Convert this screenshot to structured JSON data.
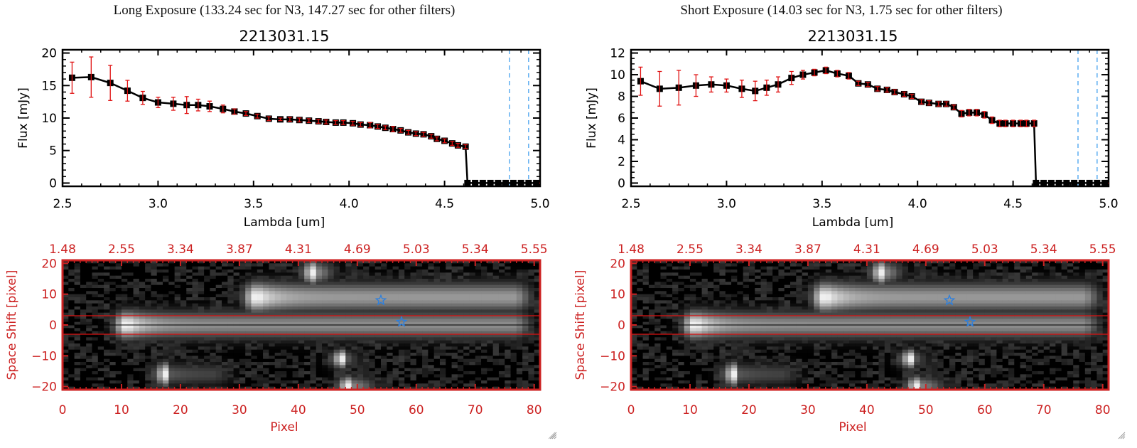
{
  "panels": [
    {
      "id": "long",
      "exposure_title": "Long Exposure (133.24 sec for N3, 147.27 sec for other filters)",
      "object_id": "2213031.15"
    },
    {
      "id": "short",
      "exposure_title": "Short Exposure (14.03 sec for N3, 1.75 sec for other filters)",
      "object_id": "2213031.15"
    }
  ],
  "colors": {
    "axes": "#000000",
    "errorbar": "#e01010",
    "marker": "#000000",
    "vline": "#3399ee",
    "image_frame": "#cc2222",
    "aperture_line": "#dd1111",
    "star": "#2a7fe0"
  },
  "chart_data": [
    {
      "type": "line",
      "panel": "long",
      "title": "2213031.15",
      "xlabel": "Lambda [um]",
      "ylabel": "Flux [mJy]",
      "xlim": [
        2.5,
        5.0
      ],
      "ylim": [
        -0.5,
        20.5
      ],
      "xticks": [
        2.5,
        3.0,
        3.5,
        4.0,
        4.5,
        5.0
      ],
      "xtick_labels": [
        "2.5",
        "3.0",
        "3.5",
        "4.0",
        "4.5",
        "5.0"
      ],
      "yticks": [
        0,
        5,
        10,
        15,
        20
      ],
      "ytick_labels": [
        "0",
        "5",
        "10",
        "15",
        "20"
      ],
      "vlines": [
        4.84,
        4.94
      ],
      "hline_dashed": 0,
      "series": [
        {
          "name": "flux",
          "x": [
            2.55,
            2.65,
            2.75,
            2.84,
            2.92,
            3.0,
            3.08,
            3.15,
            3.21,
            3.27,
            3.34,
            3.4,
            3.46,
            3.52,
            3.58,
            3.64,
            3.69,
            3.74,
            3.79,
            3.84,
            3.88,
            3.93,
            3.97,
            4.02,
            4.06,
            4.11,
            4.15,
            4.19,
            4.23,
            4.27,
            4.31,
            4.35,
            4.39,
            4.43,
            4.46,
            4.5,
            4.54,
            4.57,
            4.61,
            4.62,
            4.66,
            4.7,
            4.74,
            4.78,
            4.82,
            4.86,
            4.9,
            4.94,
            4.98
          ],
          "y": [
            16.2,
            16.3,
            15.4,
            14.2,
            13.1,
            12.4,
            12.2,
            12.0,
            12.0,
            11.8,
            11.4,
            11.0,
            10.7,
            10.3,
            9.9,
            9.8,
            9.8,
            9.7,
            9.6,
            9.5,
            9.4,
            9.3,
            9.3,
            9.2,
            9.0,
            8.9,
            8.7,
            8.5,
            8.3,
            8.1,
            7.8,
            7.6,
            7.5,
            7.2,
            6.8,
            6.5,
            6.1,
            5.8,
            5.6,
            0,
            0,
            0,
            0,
            0,
            0,
            0,
            0,
            0,
            0
          ],
          "err": [
            2.4,
            3.1,
            2.7,
            1.6,
            1.0,
            0.8,
            1.0,
            1.3,
            0.9,
            0.8,
            0.6,
            0.4,
            0.3,
            0.3,
            0.3,
            0.2,
            0.3,
            0.3,
            0.3,
            0.3,
            0.3,
            0.3,
            0.3,
            0.3,
            0.3,
            0.4,
            0.3,
            0.3,
            0.4,
            0.3,
            0.3,
            0.3,
            0.3,
            0.3,
            0.3,
            0.3,
            0.3,
            0.3,
            0.3,
            0,
            0,
            0,
            0,
            0,
            0,
            0,
            0,
            0,
            0
          ]
        }
      ]
    },
    {
      "type": "line",
      "panel": "short",
      "title": "2213031.15",
      "xlabel": "Lambda [um]",
      "ylabel": "Flux [mJy]",
      "xlim": [
        2.5,
        5.0
      ],
      "ylim": [
        -0.3,
        12.3
      ],
      "xticks": [
        2.5,
        3.0,
        3.5,
        4.0,
        4.5,
        5.0
      ],
      "xtick_labels": [
        "2.5",
        "3.0",
        "3.5",
        "4.0",
        "4.5",
        "5.0"
      ],
      "yticks": [
        0,
        2,
        4,
        6,
        8,
        10,
        12
      ],
      "ytick_labels": [
        "0",
        "2",
        "4",
        "6",
        "8",
        "10",
        "12"
      ],
      "vlines": [
        4.84,
        4.94
      ],
      "hline_dashed": 0,
      "series": [
        {
          "name": "flux",
          "x": [
            2.55,
            2.65,
            2.75,
            2.84,
            2.92,
            3.0,
            3.08,
            3.15,
            3.21,
            3.27,
            3.34,
            3.4,
            3.46,
            3.52,
            3.58,
            3.64,
            3.69,
            3.74,
            3.79,
            3.84,
            3.88,
            3.93,
            3.97,
            4.02,
            4.06,
            4.11,
            4.15,
            4.19,
            4.23,
            4.27,
            4.31,
            4.35,
            4.39,
            4.43,
            4.46,
            4.5,
            4.54,
            4.57,
            4.61,
            4.62,
            4.66,
            4.7,
            4.74,
            4.78,
            4.82,
            4.86,
            4.9,
            4.94,
            4.98
          ],
          "y": [
            9.4,
            8.7,
            8.8,
            9.0,
            9.1,
            9.0,
            8.7,
            8.5,
            8.8,
            9.1,
            9.7,
            10.0,
            10.2,
            10.4,
            10.1,
            9.9,
            9.2,
            9.1,
            8.7,
            8.6,
            8.4,
            8.2,
            8.0,
            7.5,
            7.4,
            7.3,
            7.3,
            7.0,
            6.4,
            6.5,
            6.5,
            6.3,
            5.8,
            5.5,
            5.5,
            5.5,
            5.5,
            5.5,
            5.5,
            0,
            0,
            0,
            0,
            0,
            0,
            0,
            0,
            0,
            0
          ],
          "err": [
            1.3,
            1.6,
            1.6,
            1.0,
            0.7,
            0.6,
            0.8,
            0.9,
            0.7,
            0.7,
            0.6,
            0.4,
            0.3,
            0.3,
            0.3,
            0.3,
            0.2,
            0.2,
            0.2,
            0.2,
            0.2,
            0.2,
            0.2,
            0.2,
            0.2,
            0.2,
            0.2,
            0.2,
            0.3,
            0.3,
            0.3,
            0.3,
            0.3,
            0.3,
            0.3,
            0.3,
            0.3,
            0.3,
            0.3,
            0,
            0,
            0,
            0,
            0,
            0,
            0,
            0,
            0,
            0
          ]
        }
      ]
    },
    {
      "type": "heatmap",
      "panel": "long",
      "xlabel": "Pixel",
      "ylabel": "Space Shift [pixel]",
      "xlim": [
        0,
        81
      ],
      "ylim": [
        -21,
        21
      ],
      "xticks": [
        0,
        10,
        20,
        30,
        40,
        50,
        60,
        70,
        80
      ],
      "xtick_labels": [
        "0",
        "10",
        "20",
        "30",
        "40",
        "50",
        "60",
        "70",
        "80"
      ],
      "yticks": [
        -20,
        -10,
        0,
        10,
        20
      ],
      "ytick_labels": [
        "-20",
        "-10",
        "0",
        "10",
        "20"
      ],
      "top_xtick_labels": [
        "1.48",
        "2.55",
        "3.34",
        "3.87",
        "4.31",
        "4.69",
        "5.03",
        "5.34",
        "5.55"
      ],
      "aperture_lines": [
        -3,
        3
      ],
      "center_line": 0,
      "star_markers": [
        {
          "x": 54,
          "y": 8
        },
        {
          "x": 57.5,
          "y": 1
        }
      ],
      "sources": [
        {
          "x0": 9,
          "x1": 81,
          "y": 0,
          "peak_x": 11,
          "width": 3.0,
          "peak": 1.0,
          "tail": 0.55
        },
        {
          "x0": 28,
          "x1": 81,
          "y": 9,
          "peak_x": 33,
          "width": 3.2,
          "peak": 1.0,
          "tail": 0.6
        },
        {
          "x0": 40,
          "x1": 48,
          "y": 17,
          "peak_x": 43,
          "width": 2.5,
          "peak": 0.55,
          "tail": 0.3
        },
        {
          "x0": 16,
          "x1": 30,
          "y": -16,
          "peak_x": 18,
          "width": 2.5,
          "peak": 0.35,
          "tail": 0.25
        },
        {
          "x0": 45,
          "x1": 55,
          "y": -20,
          "peak_x": 49,
          "width": 2.2,
          "peak": 0.55,
          "tail": 0.3
        },
        {
          "x0": 46,
          "x1": 52,
          "y": -11,
          "peak_x": 48,
          "width": 2.0,
          "peak": 0.4,
          "tail": 0.2
        }
      ]
    },
    {
      "type": "heatmap",
      "panel": "short",
      "xlabel": "Pixel",
      "ylabel": "Space Shift [pixel]",
      "xlim": [
        0,
        81
      ],
      "ylim": [
        -21,
        21
      ],
      "xticks": [
        0,
        10,
        20,
        30,
        40,
        50,
        60,
        70,
        80
      ],
      "xtick_labels": [
        "0",
        "10",
        "20",
        "30",
        "40",
        "50",
        "60",
        "70",
        "80"
      ],
      "yticks": [
        -20,
        -10,
        0,
        10,
        20
      ],
      "ytick_labels": [
        "-20",
        "-10",
        "0",
        "10",
        "20"
      ],
      "top_xtick_labels": [
        "1.48",
        "2.55",
        "3.34",
        "3.87",
        "4.31",
        "4.69",
        "5.03",
        "5.34",
        "5.55"
      ],
      "aperture_lines": [
        -3,
        3
      ],
      "center_line": 0,
      "star_markers": [
        {
          "x": 54,
          "y": 8
        },
        {
          "x": 57.5,
          "y": 1
        }
      ],
      "sources": [
        {
          "x0": 9,
          "x1": 81,
          "y": 0,
          "peak_x": 11,
          "width": 3.0,
          "peak": 1.0,
          "tail": 0.55
        },
        {
          "x0": 28,
          "x1": 81,
          "y": 9,
          "peak_x": 33,
          "width": 3.2,
          "peak": 1.0,
          "tail": 0.6
        },
        {
          "x0": 40,
          "x1": 48,
          "y": 17,
          "peak_x": 43,
          "width": 2.5,
          "peak": 0.55,
          "tail": 0.3
        },
        {
          "x0": 16,
          "x1": 30,
          "y": -16,
          "peak_x": 18,
          "width": 2.5,
          "peak": 0.35,
          "tail": 0.25
        },
        {
          "x0": 45,
          "x1": 55,
          "y": -20,
          "peak_x": 49,
          "width": 2.2,
          "peak": 0.55,
          "tail": 0.3
        },
        {
          "x0": 46,
          "x1": 52,
          "y": -11,
          "peak_x": 48,
          "width": 2.0,
          "peak": 0.4,
          "tail": 0.2
        }
      ]
    }
  ]
}
